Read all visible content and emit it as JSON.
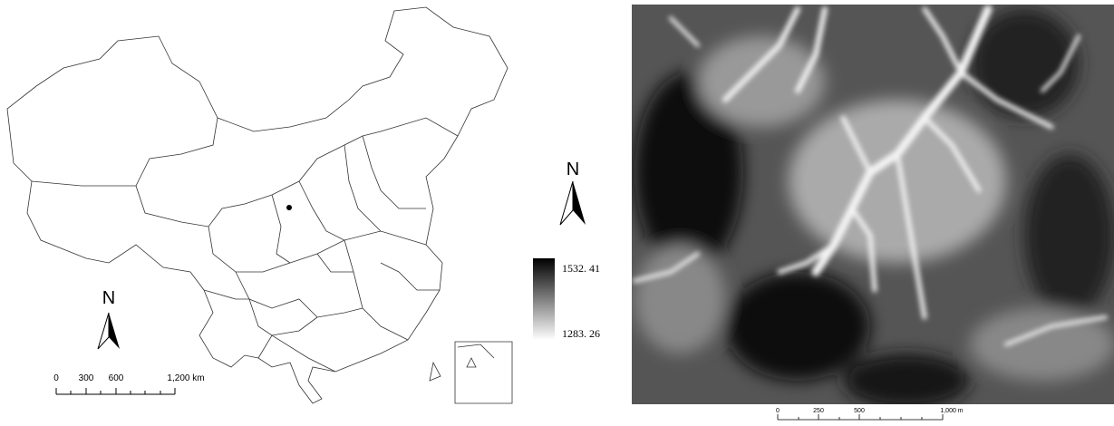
{
  "left_map": {
    "north_label": "N",
    "scale_labels": [
      "0",
      "300",
      "600",
      "1,200 km"
    ]
  },
  "legend": {
    "north_label": "N",
    "max_label": "1532. 41",
    "min_label": "1283. 26"
  },
  "right_map": {
    "scale_labels": [
      "0",
      "250",
      "500",
      "1,000 m"
    ]
  }
}
